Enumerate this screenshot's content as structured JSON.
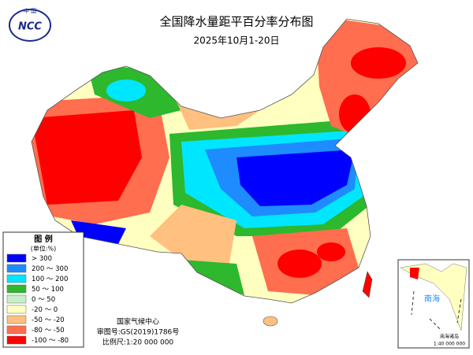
{
  "header": {
    "title": "全国降水量距平百分率分布图",
    "subtitle": "2025年10月1-20日",
    "logo_top": "中 国",
    "logo_text": "NCC"
  },
  "legend": {
    "title": "图 例",
    "unit": "(单位:%)",
    "items": [
      {
        "label": "> 300",
        "color": "#0000ff"
      },
      {
        "label": "200 ～ 300",
        "color": "#1e8cff"
      },
      {
        "label": "100 ～ 200",
        "color": "#00e6ff"
      },
      {
        "label": "50 ～ 100",
        "color": "#2db82d"
      },
      {
        "label": "0 ～ 50",
        "color": "#c8f0c8"
      },
      {
        "label": "-20 ～ 0",
        "color": "#ffffc0"
      },
      {
        "label": "-50 ～ -20",
        "color": "#ffc080"
      },
      {
        "label": "-80 ～ -50",
        "color": "#ff6e4e"
      },
      {
        "label": "-100 ～ -80",
        "color": "#ff0000"
      }
    ]
  },
  "footer": {
    "agency": "国家气候中心",
    "approval": "审图号:GS(2019)1786号",
    "scale": "比例尺:1:20 000 000"
  },
  "inset": {
    "sea": "南海",
    "islands": "南海诸岛",
    "scale": "1:40 000 000"
  }
}
